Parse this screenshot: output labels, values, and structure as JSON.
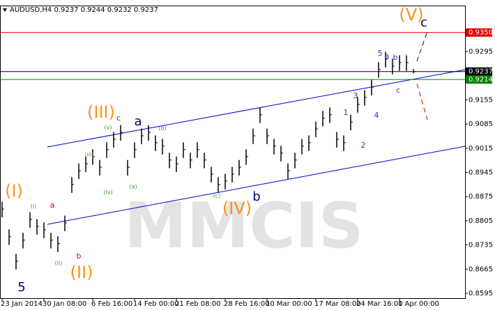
{
  "chart_data": {
    "type": "ohlc",
    "header": "AUDUSD,H4  0.9237 0.9244 0.9232 0.9237",
    "watermark": "MMCIS",
    "ylim": [
      0.8581,
      0.9428
    ],
    "yticks": [
      0.8595,
      0.8665,
      0.8735,
      0.8805,
      0.8875,
      0.8945,
      0.9015,
      0.9085,
      0.9155,
      0.9295
    ],
    "bar_color": "#000000",
    "categories": [
      "23 Jan 2014",
      null,
      null,
      null,
      null,
      null,
      "30 Jan 08:00",
      null,
      null,
      null,
      null,
      null,
      null,
      "6 Feb 16:00",
      null,
      null,
      null,
      null,
      null,
      "14 Feb 00:00",
      null,
      null,
      null,
      null,
      null,
      "21 Feb 08:00",
      null,
      null,
      null,
      null,
      null,
      null,
      "28 Feb 16:00",
      null,
      null,
      null,
      null,
      null,
      "10 Mar 00:00",
      null,
      null,
      null,
      null,
      null,
      null,
      "17 Mar 08:00",
      null,
      null,
      null,
      null,
      null,
      "24 Mar 16:00",
      null,
      null,
      null,
      null,
      null,
      "1 Apr 00:00",
      null,
      null
    ],
    "high": [
      0.886,
      0.878,
      0.8709,
      0.877,
      0.883,
      0.881,
      0.88,
      0.877,
      0.876,
      0.882,
      0.8931,
      0.8971,
      0.8991,
      0.9012,
      0.8981,
      0.9032,
      0.9062,
      0.9082,
      0.8981,
      0.9032,
      0.9072,
      0.9082,
      0.9052,
      0.9042,
      0.9002,
      0.8991,
      0.9032,
      0.9002,
      0.9032,
      0.9002,
      0.8961,
      0.8931,
      0.8941,
      0.8961,
      0.8981,
      0.9012,
      0.9072,
      0.9133,
      0.9072,
      0.9042,
      0.9022,
      0.8971,
      0.9002,
      0.9042,
      0.9052,
      0.9092,
      0.9123,
      0.9133,
      0.9062,
      0.9052,
      0.9112,
      0.9163,
      0.9183,
      0.9213,
      0.9264,
      0.9294,
      0.9274,
      0.9284,
      0.9284,
      0.9244
    ],
    "low": [
      0.8815,
      0.8735,
      0.8664,
      0.8725,
      0.8785,
      0.8765,
      0.8755,
      0.8725,
      0.8715,
      0.8775,
      0.8886,
      0.8926,
      0.8946,
      0.8967,
      0.8936,
      0.8987,
      0.9017,
      0.9037,
      0.8936,
      0.8987,
      0.9027,
      0.9037,
      0.9007,
      0.8997,
      0.8957,
      0.8946,
      0.8987,
      0.8957,
      0.8987,
      0.8957,
      0.8916,
      0.8886,
      0.8896,
      0.8916,
      0.8936,
      0.8967,
      0.9027,
      0.9088,
      0.9027,
      0.8997,
      0.8977,
      0.8926,
      0.8957,
      0.8997,
      0.9007,
      0.9047,
      0.9078,
      0.9088,
      0.9017,
      0.9007,
      0.9067,
      0.9118,
      0.9138,
      0.9168,
      0.9219,
      0.9249,
      0.9229,
      0.9239,
      0.9239,
      0.9232
    ],
    "close": [
      0.8839,
      0.8759,
      0.8688,
      0.8749,
      0.8809,
      0.8789,
      0.8779,
      0.8749,
      0.8739,
      0.8799,
      0.891,
      0.895,
      0.897,
      0.8991,
      0.896,
      0.9011,
      0.9041,
      0.9061,
      0.896,
      0.9011,
      0.9051,
      0.9061,
      0.9031,
      0.9021,
      0.8981,
      0.897,
      0.9011,
      0.8981,
      0.9011,
      0.8981,
      0.894,
      0.891,
      0.892,
      0.894,
      0.896,
      0.8991,
      0.9051,
      0.9112,
      0.9051,
      0.9021,
      0.9001,
      0.895,
      0.8981,
      0.9021,
      0.9031,
      0.9071,
      0.9102,
      0.9112,
      0.9041,
      0.9031,
      0.9091,
      0.9142,
      0.9162,
      0.9192,
      0.9243,
      0.9273,
      0.9253,
      0.9263,
      0.9263,
      0.9237
    ],
    "hlines": [
      {
        "value": 0.935,
        "label": "0.9350",
        "color": "#e00000"
      },
      {
        "value": 0.9237,
        "label": "0.9237",
        "color": "#000000"
      },
      {
        "value": 0.9214,
        "label": "0.9214",
        "color": "#008000"
      }
    ],
    "annotations": [
      {
        "text": "(I)",
        "color": "#f7931e"
      },
      {
        "text": "(i)",
        "color": "#339933"
      },
      {
        "text": "a",
        "color": "#e00000"
      },
      {
        "text": "(ii)",
        "color": "#339933"
      },
      {
        "text": "b",
        "color": "#e00000"
      },
      {
        "text": "(II)",
        "color": "#f7931e"
      },
      {
        "text": "5",
        "color": "#000080"
      },
      {
        "text": "(iii)",
        "color": "#339933"
      },
      {
        "text": "(iv)",
        "color": "#339933"
      },
      {
        "text": "(III)",
        "color": "#f7931e"
      },
      {
        "text": "c",
        "color": "#e00000"
      },
      {
        "text": "(v)",
        "color": "#339933"
      },
      {
        "text": "a",
        "color": "#000080"
      },
      {
        "text": "(a)",
        "color": "#339933"
      },
      {
        "text": "(b)",
        "color": "#339933"
      },
      {
        "text": "(c)",
        "color": "#339933"
      },
      {
        "text": "b",
        "color": "#000080"
      },
      {
        "text": "(IV)",
        "color": "#f7931e"
      },
      {
        "text": "1",
        "color": "#3333cc"
      },
      {
        "text": "2",
        "color": "#3333cc"
      },
      {
        "text": "3",
        "color": "#3333cc"
      },
      {
        "text": "4",
        "color": "#3333cc"
      },
      {
        "text": "5",
        "color": "#3333cc"
      },
      {
        "text": "a",
        "color": "#3333cc"
      },
      {
        "text": "b",
        "color": "#3333cc"
      },
      {
        "text": "c",
        "color": "#3333cc"
      },
      {
        "text": "(V)",
        "color": "#f7931e"
      },
      {
        "text": "c",
        "color": "#000080"
      }
    ]
  }
}
